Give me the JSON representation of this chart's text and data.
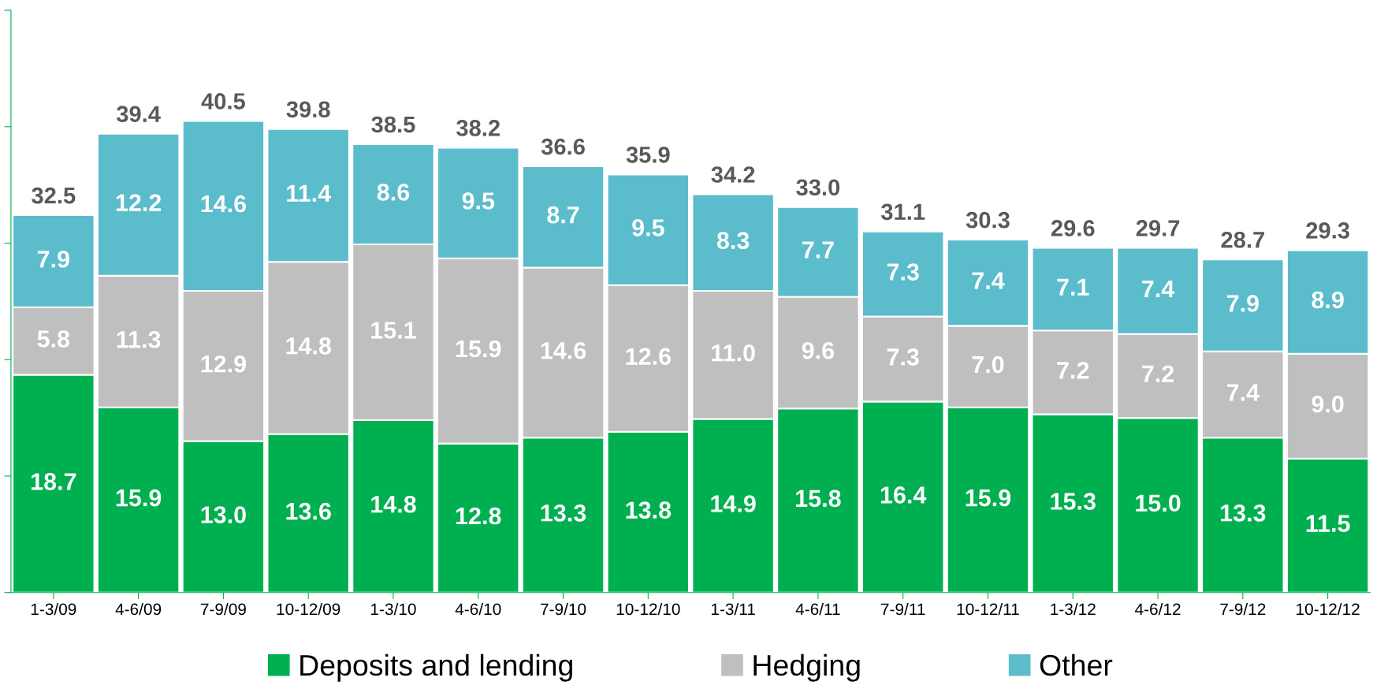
{
  "chart_data": {
    "type": "bar",
    "stacked": true,
    "tick_labels": "x",
    "grid": false,
    "legend": "bottom",
    "categories": [
      "1-3/09",
      "4-6/09",
      "7-9/09",
      "10-12/09",
      "1-3/10",
      "4-6/10",
      "7-9/10",
      "10-12/10",
      "1-3/11",
      "4-6/11",
      "7-9/11",
      "10-12/11",
      "1-3/12",
      "4-6/12",
      "7-9/12",
      "10-12/12"
    ],
    "ylim": [
      0,
      50
    ],
    "yticks": [
      {
        "value": 0,
        "label": null
      },
      {
        "value": 10,
        "label": null
      },
      {
        "value": 20,
        "label": null
      },
      {
        "value": 30,
        "label": null
      },
      {
        "value": 40,
        "label": null
      },
      {
        "value": 50,
        "label": null
      }
    ],
    "series": [
      {
        "name": "Deposits and lending",
        "color": "#00b050",
        "values": [
          18.7,
          15.9,
          13.0,
          13.6,
          14.8,
          12.8,
          13.3,
          13.8,
          14.9,
          15.8,
          16.4,
          15.9,
          15.3,
          15.0,
          13.3,
          11.5
        ],
        "value_labels": [
          "18.7",
          "15.9",
          "13.0",
          "13.6",
          "14.8",
          "12.8",
          "13.3",
          "13.8",
          "14.9",
          "15.8",
          "16.4",
          "15.9",
          "15.3",
          "15.0",
          "13.3",
          "11.5"
        ]
      },
      {
        "name": "Hedging",
        "color": "#bfbfbf",
        "values": [
          5.8,
          11.3,
          12.9,
          14.8,
          15.1,
          15.9,
          14.6,
          12.6,
          11.0,
          9.6,
          7.3,
          7.0,
          7.2,
          7.2,
          7.4,
          9.0
        ],
        "value_labels": [
          "5.8",
          "11.3",
          "12.9",
          "14.8",
          "15.1",
          "15.9",
          "14.6",
          "12.6",
          "11.0",
          "9.6",
          "7.3",
          "7.0",
          "7.2",
          "7.2",
          "7.4",
          "9.0"
        ]
      },
      {
        "name": "Other",
        "color": "#5bbccc",
        "values": [
          7.9,
          12.2,
          14.6,
          11.4,
          8.6,
          9.5,
          8.7,
          9.5,
          8.3,
          7.7,
          7.3,
          7.4,
          7.1,
          7.4,
          7.9,
          8.9
        ],
        "value_labels": [
          "7.9",
          "12.2",
          "14.6",
          "11.4",
          "8.6",
          "9.5",
          "8.7",
          "9.5",
          "8.3",
          "7.7",
          "7.3",
          "7.4",
          "7.1",
          "7.4",
          "7.9",
          "8.9"
        ]
      }
    ],
    "totals": [
      "32.5",
      "39.4",
      "40.5",
      "39.8",
      "38.5",
      "38.2",
      "36.6",
      "35.9",
      "34.2",
      "33.0",
      "31.1",
      "30.3",
      "29.6",
      "29.7",
      "28.7",
      "29.3"
    ]
  }
}
